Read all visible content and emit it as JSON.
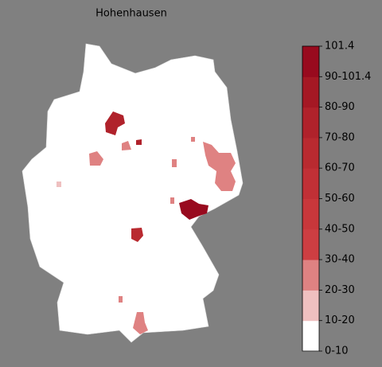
{
  "title": "Hohenhausen",
  "colorbar": {
    "ticks": [
      "0-10",
      "10-20",
      "20-30",
      "30-40",
      "40-50",
      "50-60",
      "60-70",
      "70-80",
      "80-90",
      "90-101.4",
      "101.4"
    ],
    "colors": [
      "#ffffff",
      "#efc0c0",
      "#df8282",
      "#cd3e42",
      "#c8373b",
      "#c13036",
      "#b92a30",
      "#b0222b",
      "#a51824",
      "#980a1e"
    ]
  }
}
